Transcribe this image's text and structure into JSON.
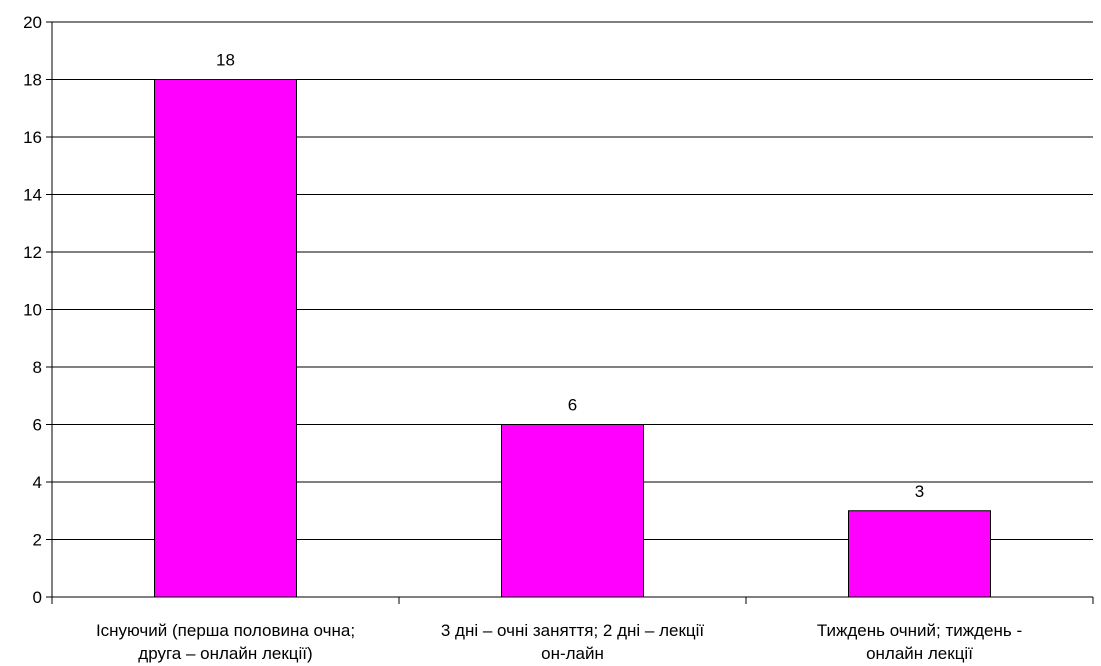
{
  "chart_data": {
    "type": "bar",
    "title": "",
    "xlabel": "",
    "ylabel": "",
    "ylim": [
      0,
      20
    ],
    "yticks": [
      0,
      2,
      4,
      6,
      8,
      10,
      12,
      14,
      16,
      18,
      20
    ],
    "grid": true,
    "categories": [
      [
        "Існуючий (перша половина очна;",
        "друга – онлайн лекції)"
      ],
      [
        "3 дні – очні заняття; 2 дні – лекції",
        "он-лайн"
      ],
      [
        "Тиждень очний; тиждень -",
        "онлайн лекції"
      ]
    ],
    "values": [
      18,
      6,
      3
    ],
    "bar_color": "#ff00ff"
  }
}
